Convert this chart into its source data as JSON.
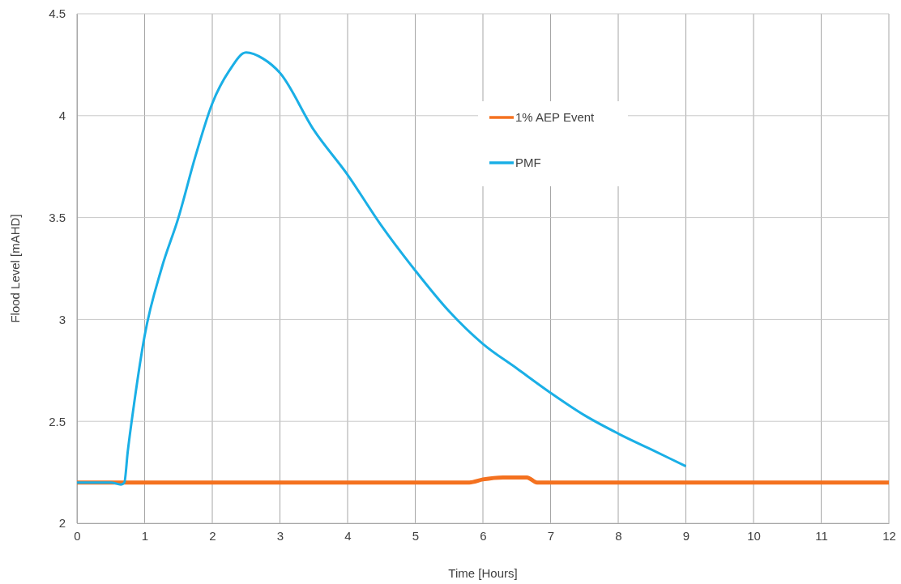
{
  "chart_data": {
    "type": "line",
    "xlabel": "Time [Hours]",
    "ylabel": "Flood Level [mAHD]",
    "xlim": [
      0,
      12
    ],
    "xticks": [
      0,
      1,
      2,
      3,
      4,
      5,
      6,
      7,
      8,
      9,
      10,
      11,
      12
    ],
    "ylim": [
      2,
      4.5
    ],
    "yticks": [
      2,
      2.5,
      3,
      3.5,
      4,
      4.5
    ],
    "grid": true,
    "legend": "top right",
    "marker": "none",
    "line_style": "solid",
    "series": [
      {
        "name": "1% AEP Event",
        "color": "#f4711f",
        "x": [
          0,
          5.8,
          6.0,
          6.3,
          6.65,
          6.8,
          12
        ],
        "values": [
          2.2,
          2.2,
          2.215,
          2.225,
          2.225,
          2.2,
          2.2
        ]
      },
      {
        "name": "PMF",
        "color": "#1aafe6",
        "x": [
          0,
          0.5,
          0.65,
          0.7,
          0.75,
          0.85,
          1,
          1.25,
          1.5,
          1.75,
          2,
          2.25,
          2.5,
          2.75,
          3,
          3.5,
          4,
          4.5,
          5,
          5.5,
          6,
          6.5,
          7,
          7.5,
          8,
          8.5,
          9
        ],
        "values": [
          2.2,
          2.2,
          2.19,
          2.2,
          2.35,
          2.6,
          2.92,
          3.25,
          3.5,
          3.8,
          4.06,
          4.22,
          4.31,
          4.28,
          4.21,
          3.93,
          3.71,
          3.46,
          3.24,
          3.04,
          2.88,
          2.76,
          2.64,
          2.53,
          2.44,
          2.36,
          2.28
        ]
      }
    ]
  }
}
